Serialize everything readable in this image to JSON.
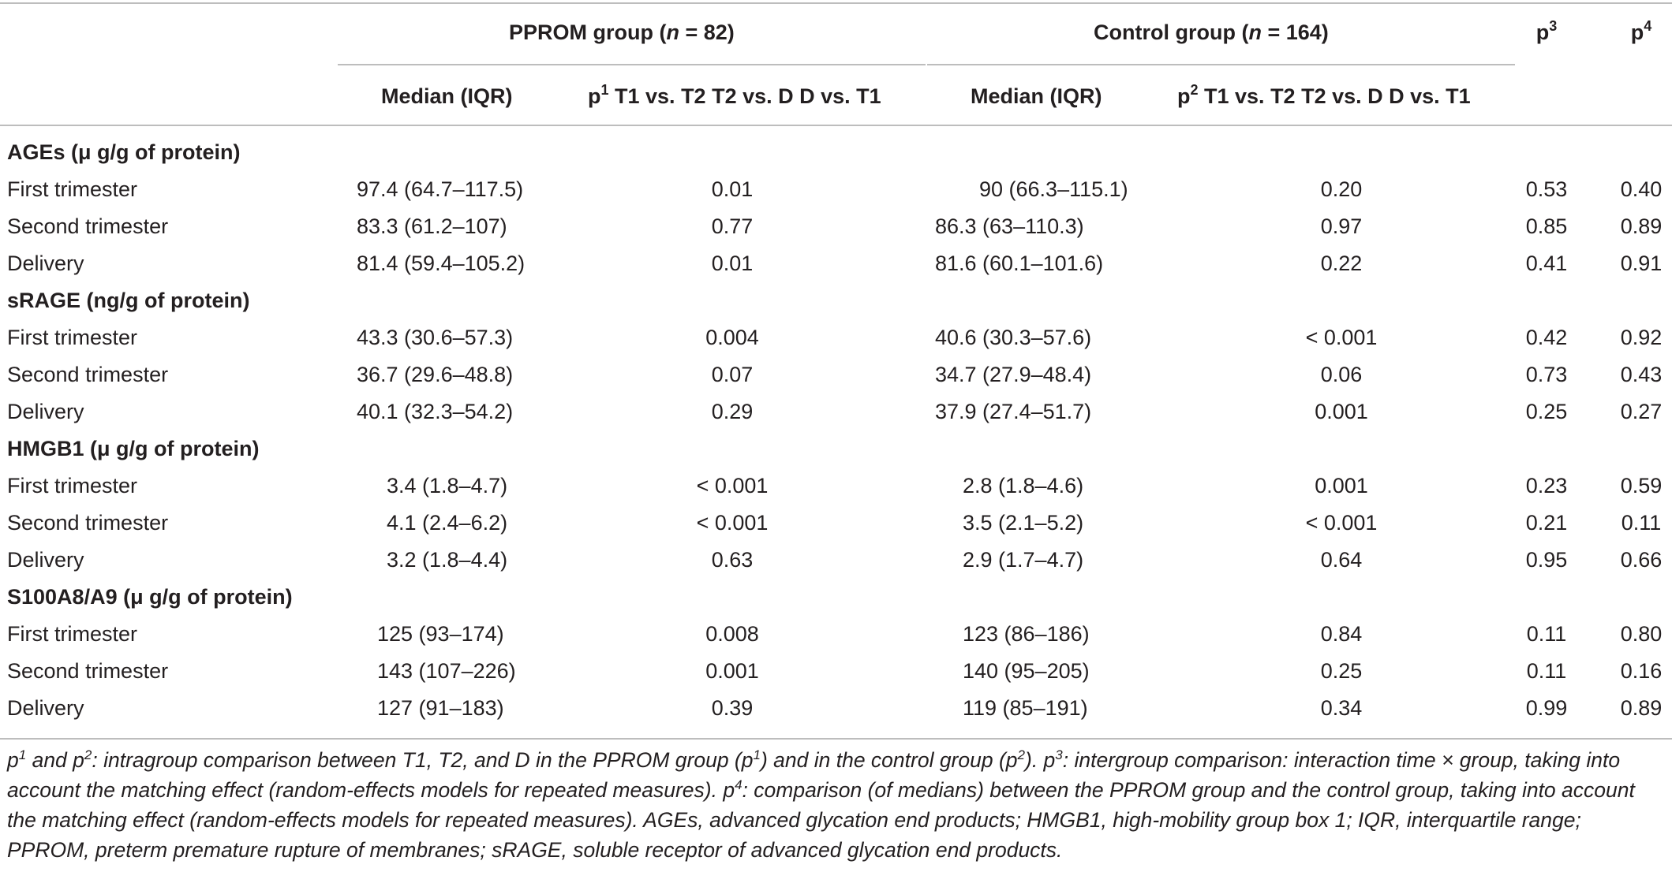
{
  "header": {
    "pprom_group": "PPROM group (",
    "pprom_n": "n",
    "pprom_count": " = 82)",
    "control_group": "Control group (",
    "control_n": "n",
    "control_count": " = 164)",
    "p3": "p",
    "p3_sup": "3",
    "p4": "p",
    "p4_sup": "4",
    "median1": "Median (IQR)",
    "p1": "p",
    "p1_sup": "1",
    "p1_text": " T1 vs. T2 T2 vs. D D vs. T1",
    "median2": "Median (IQR)",
    "p2": "p",
    "p2_sup": "2",
    "p2_text": " T1 vs. T2 T2 vs. D D vs. T1"
  },
  "sections": [
    {
      "title": "AGEs",
      "unit": " (μ g/g of protein)",
      "rows": [
        {
          "label": "First trimester",
          "median1": "97.4 (64.7–117.5)",
          "p1": "0.01",
          "median2": "90 (66.3–115.1)",
          "p2": "0.20",
          "p3": "0.53",
          "p4": "0.40"
        },
        {
          "label": "Second trimester",
          "median1": "83.3 (61.2–107)",
          "p1": "0.77",
          "median2": "86.3 (63–110.3)",
          "p2": "0.97",
          "p3": "0.85",
          "p4": "0.89"
        },
        {
          "label": "Delivery",
          "median1": "81.4 (59.4–105.2)",
          "p1": "0.01",
          "median2": "81.6 (60.1–101.6)",
          "p2": "0.22",
          "p3": "0.41",
          "p4": "0.91"
        }
      ]
    },
    {
      "title": "sRAGE",
      "unit": " (ng/g of protein)",
      "rows": [
        {
          "label": "First trimester",
          "median1": "43.3 (30.6–57.3)",
          "p1": "0.004",
          "median2": "40.6 (30.3–57.6)",
          "p2": "< 0.001",
          "p3": "0.42",
          "p4": "0.92"
        },
        {
          "label": "Second trimester",
          "median1": "36.7 (29.6–48.8)",
          "p1": "0.07",
          "median2": "34.7 (27.9–48.4)",
          "p2": "0.06",
          "p3": "0.73",
          "p4": "0.43"
        },
        {
          "label": "Delivery",
          "median1": "40.1 (32.3–54.2)",
          "p1": "0.29",
          "median2": "37.9 (27.4–51.7)",
          "p2": "0.001",
          "p3": "0.25",
          "p4": "0.27"
        }
      ]
    },
    {
      "title": "HMGB1",
      "unit": " (μ g/g of protein)",
      "rows": [
        {
          "label": "First trimester",
          "median1": "3.4 (1.8–4.7)",
          "p1": "< 0.001",
          "median2": "2.8 (1.8–4.6)",
          "p2": "0.001",
          "p3": "0.23",
          "p4": "0.59"
        },
        {
          "label": "Second trimester",
          "median1": "4.1 (2.4–6.2)",
          "p1": "< 0.001",
          "median2": "3.5 (2.1–5.2)",
          "p2": "< 0.001",
          "p3": "0.21",
          "p4": "0.11"
        },
        {
          "label": "Delivery",
          "median1": "3.2 (1.8–4.4)",
          "p1": "0.63",
          "median2": "2.9 (1.7–4.7)",
          "p2": "0.64",
          "p3": "0.95",
          "p4": "0.66"
        }
      ]
    },
    {
      "title": "S100A8/A9",
      "unit": " (μ g/g of protein)",
      "rows": [
        {
          "label": "First trimester",
          "median1": "125 (93–174)",
          "p1": "0.008",
          "median2": "123 (86–186)",
          "p2": "0.84",
          "p3": "0.11",
          "p4": "0.80"
        },
        {
          "label": "Second trimester",
          "median1": "143 (107–226)",
          "p1": "0.001",
          "median2": "140 (95–205)",
          "p2": "0.25",
          "p3": "0.11",
          "p4": "0.16"
        },
        {
          "label": "Delivery",
          "median1": "127 (91–183)",
          "p1": "0.39",
          "median2": "119 (85–191)",
          "p2": "0.34",
          "p3": "0.99",
          "p4": "0.89"
        }
      ]
    }
  ],
  "footnote": {
    "a1": "p",
    "s1": "1",
    "a2": " and p",
    "s2": "2",
    "a3": ": intragroup comparison between T1, T2, and D in the PPROM group (p",
    "s3": "1",
    "a4": ") and in the control group (p",
    "s4": "2",
    "a5": "). p",
    "s5": "3",
    "a6": ": intergroup comparison: interaction time × group, taking into account the matching effect (random-effects models for repeated measures). p",
    "s6": "4",
    "a7": ": comparison (of medians) between the PPROM group and the control group, taking into account the matching effect (random-effects models for repeated measures). AGEs, advanced glycation end products; HMGB1, high-mobility group box 1; IQR, interquartile range; PPROM, preterm premature rupture of membranes; sRAGE, soluble receptor of advanced glycation end products."
  }
}
